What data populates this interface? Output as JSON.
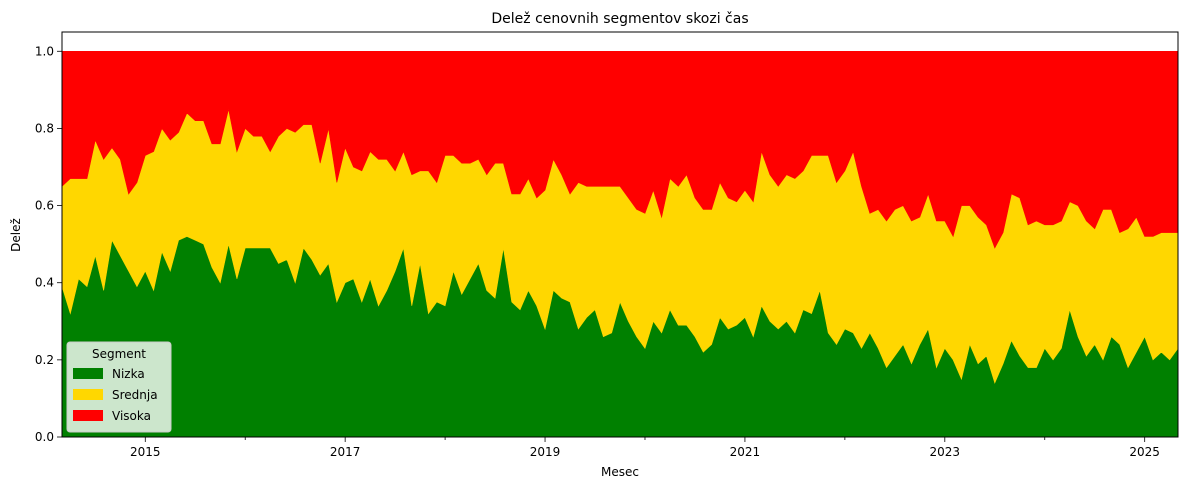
{
  "chart_data": {
    "type": "area",
    "stacked": true,
    "title": "Delež cenovnih segmentov skozi čas",
    "xlabel": "Mesec",
    "ylabel": "Delež",
    "xlim": [
      "2014-03",
      "2025-05"
    ],
    "ylim": [
      0,
      1.05
    ],
    "x_ticks": [
      "2015",
      "2017",
      "2019",
      "2021",
      "2023",
      "2025"
    ],
    "y_ticks": [
      "0.0",
      "0.2",
      "0.4",
      "0.6",
      "0.8",
      "1.0"
    ],
    "grid": false,
    "legend": {
      "title": "Segment",
      "placement": "lower-left"
    },
    "x": [
      "2014-03",
      "2014-04",
      "2014-05",
      "2014-06",
      "2014-07",
      "2014-08",
      "2014-09",
      "2014-10",
      "2014-11",
      "2014-12",
      "2015-01",
      "2015-02",
      "2015-03",
      "2015-04",
      "2015-05",
      "2015-06",
      "2015-07",
      "2015-08",
      "2015-09",
      "2015-10",
      "2015-11",
      "2015-12",
      "2016-01",
      "2016-02",
      "2016-03",
      "2016-04",
      "2016-05",
      "2016-06",
      "2016-07",
      "2016-08",
      "2016-09",
      "2016-10",
      "2016-11",
      "2016-12",
      "2017-01",
      "2017-02",
      "2017-03",
      "2017-04",
      "2017-05",
      "2017-06",
      "2017-07",
      "2017-08",
      "2017-09",
      "2017-10",
      "2017-11",
      "2017-12",
      "2018-01",
      "2018-02",
      "2018-03",
      "2018-04",
      "2018-05",
      "2018-06",
      "2018-07",
      "2018-08",
      "2018-09",
      "2018-10",
      "2018-11",
      "2018-12",
      "2019-01",
      "2019-02",
      "2019-03",
      "2019-04",
      "2019-05",
      "2019-06",
      "2019-07",
      "2019-08",
      "2019-09",
      "2019-10",
      "2019-11",
      "2019-12",
      "2020-01",
      "2020-02",
      "2020-03",
      "2020-04",
      "2020-05",
      "2020-06",
      "2020-07",
      "2020-08",
      "2020-09",
      "2020-10",
      "2020-11",
      "2020-12",
      "2021-01",
      "2021-02",
      "2021-03",
      "2021-04",
      "2021-05",
      "2021-06",
      "2021-07",
      "2021-08",
      "2021-09",
      "2021-10",
      "2021-11",
      "2021-12",
      "2022-01",
      "2022-02",
      "2022-03",
      "2022-04",
      "2022-05",
      "2022-06",
      "2022-07",
      "2022-08",
      "2022-09",
      "2022-10",
      "2022-11",
      "2022-12",
      "2023-01",
      "2023-02",
      "2023-03",
      "2023-04",
      "2023-05",
      "2023-06",
      "2023-07",
      "2023-08",
      "2023-09",
      "2023-10",
      "2023-11",
      "2023-12",
      "2024-01",
      "2024-02",
      "2024-03",
      "2024-04",
      "2024-05",
      "2024-06",
      "2024-07",
      "2024-08",
      "2024-09",
      "2024-10",
      "2024-11",
      "2024-12",
      "2025-01",
      "2025-02",
      "2025-03",
      "2025-04",
      "2025-05"
    ],
    "series": [
      {
        "name": "Nizka",
        "color": "#008000",
        "values": [
          0.39,
          0.32,
          0.41,
          0.39,
          0.47,
          0.38,
          0.51,
          0.47,
          0.43,
          0.39,
          0.43,
          0.38,
          0.48,
          0.43,
          0.51,
          0.52,
          0.51,
          0.5,
          0.44,
          0.4,
          0.5,
          0.41,
          0.49,
          0.49,
          0.49,
          0.49,
          0.45,
          0.46,
          0.4,
          0.49,
          0.46,
          0.42,
          0.45,
          0.35,
          0.4,
          0.41,
          0.35,
          0.41,
          0.34,
          0.38,
          0.43,
          0.49,
          0.34,
          0.45,
          0.32,
          0.35,
          0.34,
          0.43,
          0.37,
          0.41,
          0.45,
          0.38,
          0.36,
          0.49,
          0.35,
          0.33,
          0.38,
          0.34,
          0.28,
          0.38,
          0.36,
          0.35,
          0.28,
          0.31,
          0.33,
          0.26,
          0.27,
          0.35,
          0.3,
          0.26,
          0.23,
          0.3,
          0.27,
          0.33,
          0.29,
          0.29,
          0.26,
          0.22,
          0.24,
          0.31,
          0.28,
          0.29,
          0.31,
          0.26,
          0.34,
          0.3,
          0.28,
          0.3,
          0.27,
          0.33,
          0.32,
          0.38,
          0.27,
          0.24,
          0.28,
          0.27,
          0.23,
          0.27,
          0.23,
          0.18,
          0.21,
          0.24,
          0.19,
          0.24,
          0.28,
          0.18,
          0.23,
          0.2,
          0.15,
          0.24,
          0.19,
          0.21,
          0.14,
          0.19,
          0.25,
          0.21,
          0.18,
          0.18,
          0.23,
          0.2,
          0.23,
          0.33,
          0.26,
          0.21,
          0.24,
          0.2,
          0.26,
          0.24,
          0.18,
          0.22,
          0.26,
          0.2,
          0.22,
          0.2,
          0.23
        ]
      },
      {
        "name": "Srednja",
        "color": "#FFD700",
        "values": [
          0.26,
          0.35,
          0.26,
          0.28,
          0.3,
          0.34,
          0.24,
          0.25,
          0.2,
          0.27,
          0.3,
          0.36,
          0.32,
          0.34,
          0.28,
          0.32,
          0.31,
          0.32,
          0.32,
          0.36,
          0.35,
          0.33,
          0.31,
          0.29,
          0.29,
          0.25,
          0.33,
          0.34,
          0.39,
          0.32,
          0.35,
          0.29,
          0.35,
          0.31,
          0.35,
          0.29,
          0.34,
          0.33,
          0.38,
          0.34,
          0.26,
          0.25,
          0.34,
          0.24,
          0.37,
          0.31,
          0.39,
          0.3,
          0.34,
          0.3,
          0.27,
          0.3,
          0.35,
          0.22,
          0.28,
          0.3,
          0.29,
          0.28,
          0.36,
          0.34,
          0.32,
          0.28,
          0.38,
          0.34,
          0.32,
          0.39,
          0.38,
          0.3,
          0.32,
          0.33,
          0.35,
          0.34,
          0.3,
          0.34,
          0.36,
          0.39,
          0.36,
          0.37,
          0.35,
          0.35,
          0.34,
          0.32,
          0.33,
          0.35,
          0.4,
          0.38,
          0.37,
          0.38,
          0.4,
          0.36,
          0.41,
          0.35,
          0.46,
          0.42,
          0.41,
          0.47,
          0.42,
          0.31,
          0.36,
          0.38,
          0.38,
          0.36,
          0.37,
          0.33,
          0.35,
          0.38,
          0.33,
          0.32,
          0.45,
          0.36,
          0.38,
          0.34,
          0.35,
          0.34,
          0.38,
          0.41,
          0.37,
          0.38,
          0.32,
          0.35,
          0.33,
          0.28,
          0.34,
          0.35,
          0.3,
          0.39,
          0.33,
          0.29,
          0.36,
          0.35,
          0.26,
          0.32,
          0.31,
          0.33,
          0.3
        ]
      },
      {
        "name": "Visoka",
        "color": "#FF0000",
        "values": [
          0.35,
          0.33,
          0.33,
          0.33,
          0.23,
          0.28,
          0.25,
          0.28,
          0.37,
          0.34,
          0.27,
          0.26,
          0.2,
          0.23,
          0.21,
          0.16,
          0.18,
          0.18,
          0.24,
          0.24,
          0.15,
          0.26,
          0.2,
          0.22,
          0.22,
          0.26,
          0.22,
          0.2,
          0.21,
          0.19,
          0.19,
          0.29,
          0.2,
          0.34,
          0.25,
          0.3,
          0.31,
          0.26,
          0.28,
          0.28,
          0.31,
          0.26,
          0.32,
          0.31,
          0.31,
          0.34,
          0.27,
          0.27,
          0.29,
          0.29,
          0.28,
          0.32,
          0.29,
          0.29,
          0.37,
          0.37,
          0.33,
          0.38,
          0.36,
          0.28,
          0.32,
          0.37,
          0.34,
          0.35,
          0.35,
          0.35,
          0.35,
          0.35,
          0.38,
          0.41,
          0.42,
          0.36,
          0.43,
          0.33,
          0.35,
          0.32,
          0.38,
          0.41,
          0.41,
          0.34,
          0.38,
          0.39,
          0.36,
          0.39,
          0.26,
          0.32,
          0.35,
          0.32,
          0.33,
          0.31,
          0.27,
          0.27,
          0.27,
          0.34,
          0.31,
          0.26,
          0.35,
          0.42,
          0.41,
          0.44,
          0.41,
          0.4,
          0.44,
          0.43,
          0.37,
          0.44,
          0.44,
          0.48,
          0.4,
          0.4,
          0.43,
          0.45,
          0.51,
          0.47,
          0.37,
          0.38,
          0.45,
          0.44,
          0.45,
          0.45,
          0.44,
          0.39,
          0.4,
          0.44,
          0.46,
          0.41,
          0.41,
          0.47,
          0.46,
          0.43,
          0.48,
          0.48,
          0.47,
          0.47,
          0.47
        ]
      }
    ]
  }
}
